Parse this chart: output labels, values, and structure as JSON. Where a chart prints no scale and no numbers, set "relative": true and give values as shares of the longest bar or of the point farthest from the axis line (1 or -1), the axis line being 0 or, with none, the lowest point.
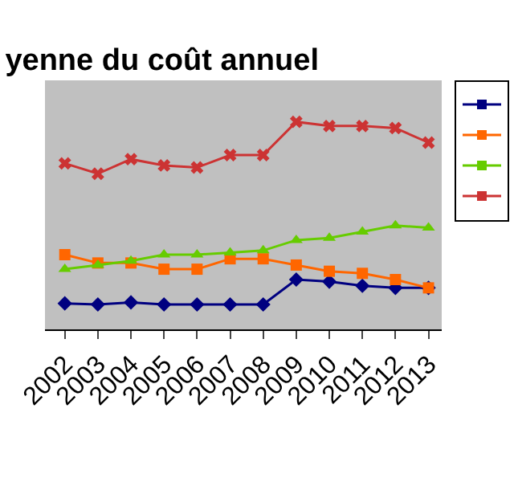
{
  "chart_data": {
    "type": "line",
    "title": "yenne du coût annuel",
    "relative": true,
    "categories": [
      "2002",
      "2003",
      "2004",
      "2005",
      "2006",
      "2007",
      "2008",
      "2009",
      "2010",
      "2011",
      "2012",
      "2013"
    ],
    "series": [
      {
        "color": "#000080",
        "marker": "diamond",
        "values": [
          0.125,
          0.12,
          0.13,
          0.12,
          0.12,
          0.12,
          0.12,
          0.24,
          0.23,
          0.21,
          0.2,
          0.2
        ]
      },
      {
        "color": "#ff6600",
        "marker": "square",
        "values": [
          0.36,
          0.32,
          0.32,
          0.29,
          0.29,
          0.34,
          0.34,
          0.31,
          0.28,
          0.27,
          0.24,
          0.2
        ]
      },
      {
        "color": "#66cc00",
        "marker": "triangle",
        "values": [
          0.29,
          0.31,
          0.33,
          0.36,
          0.36,
          0.37,
          0.38,
          0.43,
          0.44,
          0.47,
          0.5,
          0.49
        ]
      },
      {
        "color": "#cc3333",
        "marker": "cross",
        "values": [
          0.8,
          0.75,
          0.82,
          0.79,
          0.78,
          0.84,
          0.84,
          1.0,
          0.98,
          0.98,
          0.97,
          0.9
        ]
      }
    ]
  }
}
